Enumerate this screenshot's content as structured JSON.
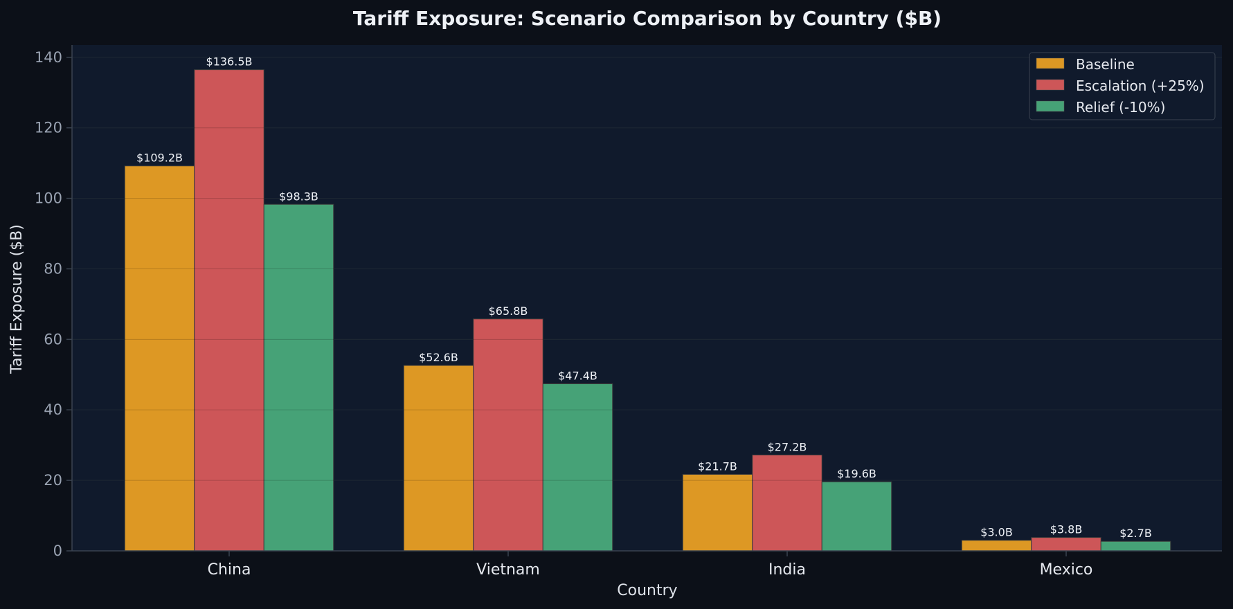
{
  "chart_data": {
    "type": "bar",
    "title": "Tariff Exposure: Scenario Comparison by Country ($B)",
    "xlabel": "Country",
    "ylabel": "Tariff Exposure ($B)",
    "categories": [
      "China",
      "Vietnam",
      "India",
      "Mexico"
    ],
    "series": [
      {
        "name": "Baseline",
        "color": "#dd9824",
        "values": [
          109.2,
          52.6,
          21.7,
          3.0
        ],
        "labels": [
          "$109.2B",
          "$52.6B",
          "$21.7B",
          "$3.0B"
        ]
      },
      {
        "name": "Escalation (+25%)",
        "color": "#cd5658",
        "values": [
          136.5,
          65.8,
          27.2,
          3.8
        ],
        "labels": [
          "$136.5B",
          "$65.8B",
          "$27.2B",
          "$3.8B"
        ]
      },
      {
        "name": "Relief (-10%)",
        "color": "#46a277",
        "values": [
          98.3,
          47.4,
          19.6,
          2.7
        ],
        "labels": [
          "$98.3B",
          "$47.4B",
          "$19.6B",
          "$2.7B"
        ]
      }
    ],
    "ylim": [
      0,
      143.5
    ],
    "yticks": [
      0,
      20,
      40,
      60,
      80,
      100,
      120,
      140
    ],
    "grid": true,
    "legend_position": "top-right"
  },
  "colors": {
    "background": "#0c1018",
    "plot_background": "#101a2c",
    "grid": "#24303f",
    "axis": "#3a4350"
  }
}
